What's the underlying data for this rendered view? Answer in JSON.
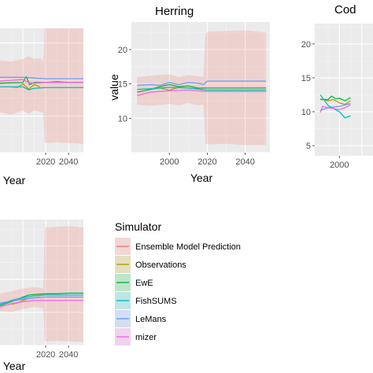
{
  "chart_data": [
    {
      "type": "line",
      "title": "",
      "xlabel": "Year",
      "ylabel": "",
      "xlim": [
        1980,
        2053
      ],
      "ylim": [
        5,
        22
      ],
      "x_ticks": [
        "2020",
        "2040"
      ],
      "y_ticks": [],
      "band": {
        "name": "Ensemble Model Prediction",
        "x": [
          1980,
          1990,
          2000,
          2005,
          2010,
          2015,
          2018,
          2019,
          2020,
          2030,
          2040,
          2053
        ],
        "lower": [
          10.5,
          10.2,
          10.8,
          10.3,
          10.8,
          10.6,
          10.5,
          6.5,
          6.3,
          6.4,
          6.3,
          6.2
        ],
        "upper": [
          17.6,
          17.5,
          17.8,
          18.2,
          17.8,
          17.9,
          17.6,
          22.0,
          22.3,
          22.4,
          22.4,
          22.3
        ]
      },
      "series": [
        {
          "name": "Observations",
          "x": [
            1990,
            1995,
            2000,
            2005,
            2010,
            2015
          ],
          "values": [
            14.0,
            13.9,
            14.4,
            13.7,
            14.3,
            14.0
          ]
        },
        {
          "name": "EwE",
          "x": [
            1980,
            2000,
            2003,
            2006,
            2010,
            2020,
            2030,
            2040,
            2053
          ],
          "values": [
            14.5,
            14.6,
            15.4,
            14.3,
            14.6,
            14.6,
            14.7,
            14.6,
            14.6
          ]
        },
        {
          "name": "FishSUMS",
          "x": [
            1980,
            2000,
            2005,
            2010,
            2020,
            2030,
            2040,
            2053
          ],
          "values": [
            14.0,
            14.0,
            13.6,
            13.8,
            13.9,
            13.9,
            13.9,
            13.9
          ]
        },
        {
          "name": "LeMans",
          "x": [
            1980,
            2000,
            2010,
            2020,
            2040,
            2053
          ],
          "values": [
            15.3,
            15.3,
            15.2,
            15.1,
            15.1,
            15.1
          ]
        },
        {
          "name": "mizer",
          "x": [
            1980,
            2000,
            2005,
            2010,
            2020,
            2040,
            2053
          ],
          "values": [
            14.8,
            15.0,
            14.6,
            14.5,
            14.6,
            14.6,
            14.6
          ]
        }
      ]
    },
    {
      "type": "line",
      "title": "Herring",
      "xlabel": "Year",
      "ylabel": "value",
      "xlim": [
        1980,
        2053
      ],
      "ylim": [
        5,
        24
      ],
      "x_ticks": [
        "2000",
        "2020",
        "2040"
      ],
      "y_ticks": [
        "10",
        "15",
        "20"
      ],
      "band": {
        "name": "Ensemble Model Prediction",
        "x": [
          1983,
          1990,
          2000,
          2005,
          2010,
          2015,
          2018,
          2019,
          2020,
          2030,
          2040,
          2051
        ],
        "lower": [
          12.0,
          11.8,
          12.1,
          11.9,
          12.2,
          11.9,
          12.0,
          6.3,
          6.2,
          6.3,
          6.1,
          6.1
        ],
        "upper": [
          16.0,
          16.2,
          16.4,
          16.0,
          16.3,
          16.1,
          16.0,
          22.3,
          22.6,
          22.7,
          22.8,
          22.5
        ]
      },
      "series": [
        {
          "name": "Observations",
          "x": [
            1990,
            1995,
            2000,
            2005,
            2010,
            2015
          ],
          "values": [
            14.2,
            14.4,
            14.1,
            14.5,
            14.4,
            14.3
          ]
        },
        {
          "name": "EwE",
          "x": [
            1983,
            1990,
            1995,
            2000,
            2005,
            2010,
            2015,
            2020,
            2030,
            2040,
            2051
          ],
          "values": [
            13.8,
            14.2,
            14.6,
            14.9,
            14.6,
            14.7,
            14.4,
            14.4,
            14.4,
            14.4,
            14.4
          ]
        },
        {
          "name": "FishSUMS",
          "x": [
            1983,
            1990,
            2000,
            2010,
            2020,
            2030,
            2040,
            2051
          ],
          "values": [
            14.2,
            14.3,
            14.5,
            14.4,
            14.1,
            14.1,
            14.1,
            14.1
          ]
        },
        {
          "name": "LeMans",
          "x": [
            1983,
            1990,
            1995,
            2000,
            2005,
            2010,
            2015,
            2018,
            2020,
            2030,
            2040,
            2051
          ],
          "values": [
            14.8,
            14.9,
            14.8,
            15.2,
            14.9,
            15.2,
            15.1,
            14.9,
            15.4,
            15.4,
            15.4,
            15.4
          ]
        },
        {
          "name": "mizer",
          "x": [
            1983,
            1990,
            2000,
            2010,
            2020,
            2030,
            2040,
            2051
          ],
          "values": [
            13.3,
            13.8,
            14.0,
            14.1,
            13.9,
            13.9,
            13.9,
            13.9
          ]
        }
      ]
    },
    {
      "type": "line",
      "title": "Cod",
      "xlabel": "",
      "ylabel": "",
      "xlim": [
        1978,
        2030
      ],
      "ylim": [
        3.5,
        23
      ],
      "x_ticks": [
        "2000"
      ],
      "y_ticks": [
        "5",
        "10",
        "15",
        "20"
      ],
      "band": null,
      "series": [
        {
          "name": "Observations",
          "x": [
            1983,
            1990,
            1995,
            2000,
            2005,
            2010
          ],
          "values": [
            11.9,
            11.6,
            11.8,
            11.3,
            11.1,
            11.6
          ]
        },
        {
          "name": "EwE",
          "x": [
            1983,
            1990,
            1993,
            1997,
            2000,
            2005,
            2010
          ],
          "values": [
            11.8,
            11.8,
            12.3,
            11.9,
            12.0,
            11.6,
            12.1
          ]
        },
        {
          "name": "FishSUMS",
          "x": [
            1983,
            1990,
            2000,
            2005,
            2010
          ],
          "values": [
            12.5,
            10.9,
            10.0,
            9.1,
            9.4
          ]
        },
        {
          "name": "LeMans",
          "x": [
            1983,
            1990,
            2000,
            2005,
            2010
          ],
          "values": [
            10.2,
            10.6,
            10.8,
            11.0,
            11.2
          ]
        },
        {
          "name": "mizer",
          "x": [
            1983,
            1985,
            1990,
            2000,
            2005,
            2010
          ],
          "values": [
            9.9,
            10.8,
            10.6,
            10.3,
            10.6,
            11.0
          ]
        }
      ]
    },
    {
      "type": "line",
      "title": "",
      "xlabel": "Year",
      "ylabel": "",
      "xlim": [
        1980,
        2053
      ],
      "ylim": [
        5,
        24
      ],
      "x_ticks": [
        "2020",
        "2040"
      ],
      "y_ticks": [],
      "band": {
        "name": "Ensemble Model Prediction",
        "x": [
          1980,
          1990,
          2000,
          2010,
          2015,
          2018,
          2019,
          2020,
          2030,
          2040,
          2053
        ],
        "lower": [
          10.2,
          10.0,
          10.5,
          10.8,
          10.7,
          10.6,
          5.8,
          5.6,
          5.7,
          5.6,
          5.5
        ],
        "upper": [
          12.8,
          13.2,
          13.6,
          13.8,
          13.7,
          13.6,
          22.5,
          22.8,
          22.9,
          23.0,
          22.8
        ]
      },
      "series": [
        {
          "name": "Observations",
          "x": [
            1990,
            1995,
            2000,
            2005,
            2010,
            2015
          ],
          "values": [
            11.2,
            11.4,
            11.8,
            12.1,
            12.2,
            12.3
          ]
        },
        {
          "name": "EwE",
          "x": [
            1980,
            1990,
            2000,
            2005,
            2010,
            2020,
            2030,
            2040,
            2053
          ],
          "values": [
            11.0,
            11.6,
            12.3,
            12.6,
            12.7,
            12.8,
            12.8,
            12.9,
            12.9
          ]
        },
        {
          "name": "FishSUMS",
          "x": [
            1980,
            1990,
            2000,
            2010,
            2020,
            2030,
            2040,
            2053
          ],
          "values": [
            11.2,
            11.8,
            12.2,
            12.5,
            12.6,
            12.6,
            12.6,
            12.6
          ]
        },
        {
          "name": "LeMans",
          "x": [
            1980,
            1990,
            2000,
            2010,
            2020,
            2040,
            2053
          ],
          "values": [
            11.4,
            11.7,
            12.0,
            12.2,
            12.3,
            12.3,
            12.3
          ]
        },
        {
          "name": "mizer",
          "x": [
            1980,
            1990,
            2000,
            2010,
            2020,
            2040,
            2053
          ],
          "values": [
            10.8,
            11.3,
            11.6,
            11.8,
            11.8,
            11.8,
            11.8
          ]
        }
      ]
    }
  ],
  "legend": {
    "title": "Simulator",
    "placement": "right",
    "entries": [
      {
        "label": "Ensemble Model Prediction",
        "color": "#F8766D",
        "fill": "#F8766D"
      },
      {
        "label": "Observations",
        "color": "#B79F00",
        "fill": "#B79F00"
      },
      {
        "label": "EwE",
        "color": "#00BA38",
        "fill": "#00BA38"
      },
      {
        "label": "FishSUMS",
        "color": "#00BFC4",
        "fill": "#00BFC4"
      },
      {
        "label": "LeMans",
        "color": "#619CFF",
        "fill": "#619CFF"
      },
      {
        "label": "mizer",
        "color": "#F564E3",
        "fill": "#F564E3"
      }
    ]
  },
  "colors": {
    "panel_bg": "#EBEBEB",
    "grid_major": "#FFFFFF",
    "grid_minor": "#F5F5F5",
    "band_fill": "#F8766D"
  }
}
